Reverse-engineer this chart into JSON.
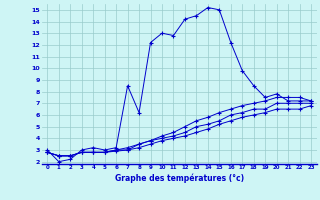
{
  "xlabel": "Graphe des températures (°c)",
  "background_color": "#cef5f5",
  "line_color": "#0000cc",
  "xlim": [
    -0.5,
    23.5
  ],
  "ylim": [
    1.8,
    15.5
  ],
  "xticks": [
    0,
    1,
    2,
    3,
    4,
    5,
    6,
    7,
    8,
    9,
    10,
    11,
    12,
    13,
    14,
    15,
    16,
    17,
    18,
    19,
    20,
    21,
    22,
    23
  ],
  "yticks": [
    2,
    3,
    4,
    5,
    6,
    7,
    8,
    9,
    10,
    11,
    12,
    13,
    14,
    15
  ],
  "line1_x": [
    0,
    1,
    2,
    3,
    4,
    5,
    6,
    7,
    8,
    9,
    10,
    11,
    12,
    13,
    14,
    15,
    16,
    17,
    18,
    19,
    20,
    21,
    22,
    23
  ],
  "line1_y": [
    3.0,
    2.0,
    2.2,
    3.0,
    3.2,
    3.0,
    3.2,
    8.5,
    6.2,
    12.2,
    13.0,
    12.8,
    14.2,
    14.5,
    15.2,
    15.0,
    12.2,
    9.8,
    8.5,
    7.5,
    7.8,
    7.2,
    7.2,
    7.2
  ],
  "line2_x": [
    0,
    1,
    2,
    3,
    4,
    5,
    6,
    7,
    8,
    9,
    10,
    11,
    12,
    13,
    14,
    15,
    16,
    17,
    18,
    19,
    20,
    21,
    22,
    23
  ],
  "line2_y": [
    2.8,
    2.5,
    2.5,
    2.8,
    2.8,
    2.8,
    3.0,
    3.2,
    3.5,
    3.8,
    4.2,
    4.5,
    5.0,
    5.5,
    5.8,
    6.2,
    6.5,
    6.8,
    7.0,
    7.2,
    7.5,
    7.5,
    7.5,
    7.2
  ],
  "line3_x": [
    0,
    1,
    2,
    3,
    4,
    5,
    6,
    7,
    8,
    9,
    10,
    11,
    12,
    13,
    14,
    15,
    16,
    17,
    18,
    19,
    20,
    21,
    22,
    23
  ],
  "line3_y": [
    2.8,
    2.5,
    2.5,
    2.8,
    2.8,
    2.8,
    3.0,
    3.0,
    3.5,
    3.8,
    4.0,
    4.2,
    4.5,
    5.0,
    5.2,
    5.5,
    6.0,
    6.2,
    6.5,
    6.5,
    7.0,
    7.0,
    7.0,
    7.0
  ],
  "line4_x": [
    0,
    1,
    2,
    3,
    4,
    5,
    6,
    7,
    8,
    9,
    10,
    11,
    12,
    13,
    14,
    15,
    16,
    17,
    18,
    19,
    20,
    21,
    22,
    23
  ],
  "line4_y": [
    2.8,
    2.5,
    2.5,
    2.8,
    2.8,
    2.8,
    2.9,
    3.0,
    3.2,
    3.5,
    3.8,
    4.0,
    4.2,
    4.5,
    4.8,
    5.2,
    5.5,
    5.8,
    6.0,
    6.2,
    6.5,
    6.5,
    6.5,
    6.8
  ]
}
